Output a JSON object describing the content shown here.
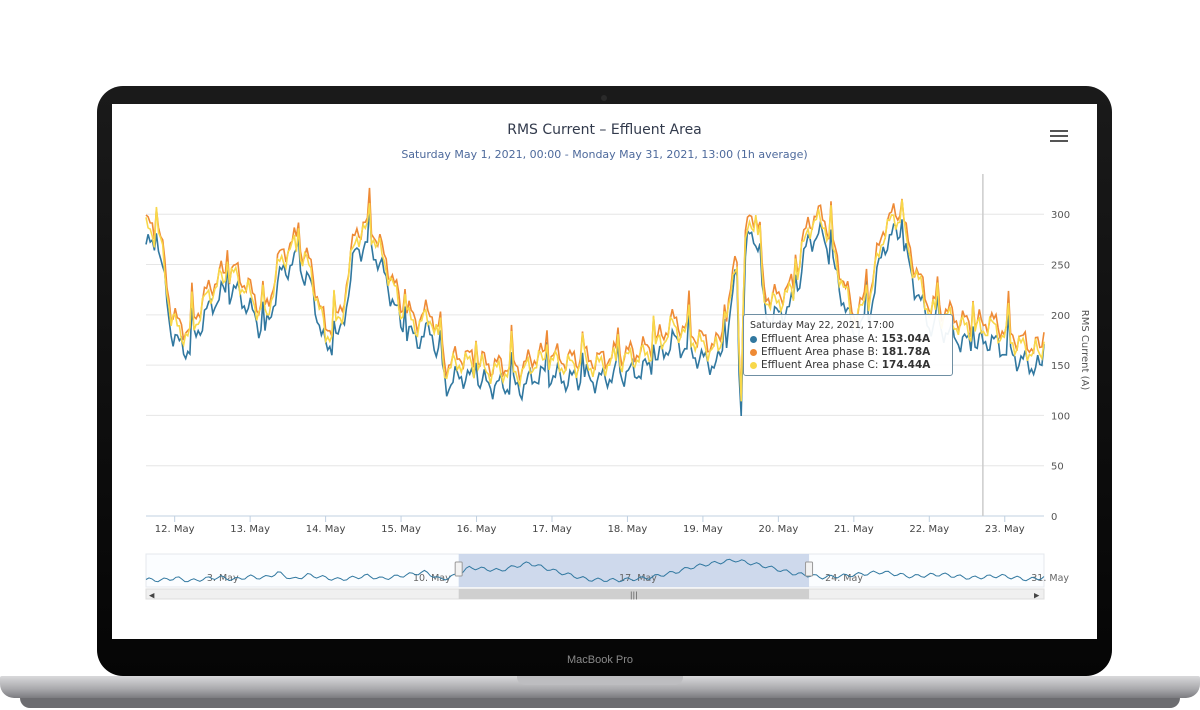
{
  "device": {
    "brand": "MacBook Pro"
  },
  "colors": {
    "phase_a": "#3178a0",
    "phase_b": "#ee8a35",
    "phase_c": "#f8d84a",
    "navigator_line": "#3178a0",
    "navigator_selection": "#c9d5ea"
  },
  "chart_data": {
    "type": "line",
    "title": "RMS Current – Effluent Area",
    "subtitle": "Saturday May 1, 2021, 00:00 - Monday May 31, 2021, 13:00 (1h average)",
    "ylabel": "RMS Current (A)",
    "ylim": [
      0,
      340
    ],
    "yticks": [
      "0",
      "50",
      "100",
      "150",
      "200",
      "250",
      "300"
    ],
    "x_domain_days": [
      11.62,
      23.52
    ],
    "xticks": [
      {
        "day": 12,
        "label": "12. May"
      },
      {
        "day": 13,
        "label": "13. May"
      },
      {
        "day": 14,
        "label": "14. May"
      },
      {
        "day": 15,
        "label": "15. May"
      },
      {
        "day": 16,
        "label": "16. May"
      },
      {
        "day": 17,
        "label": "17. May"
      },
      {
        "day": 18,
        "label": "18. May"
      },
      {
        "day": 19,
        "label": "19. May"
      },
      {
        "day": 20,
        "label": "20. May"
      },
      {
        "day": 21,
        "label": "21. May"
      },
      {
        "day": 22,
        "label": "22. May"
      },
      {
        "day": 23,
        "label": "23. May"
      }
    ],
    "grid": true,
    "crosshair_day": 22.71,
    "base_profile": {
      "day": [
        11.62,
        11.8,
        11.95,
        12.05,
        12.2,
        12.4,
        12.6,
        12.8,
        13.0,
        13.2,
        13.4,
        13.6,
        13.8,
        14.0,
        14.2,
        14.4,
        14.6,
        14.8,
        15.0,
        15.2,
        15.4,
        15.6,
        15.8,
        16.0,
        16.2,
        16.4,
        16.6,
        16.8,
        17.0,
        17.2,
        17.4,
        17.6,
        17.8,
        18.0,
        18.2,
        18.4,
        18.6,
        18.8,
        19.0,
        19.2,
        19.35,
        19.45,
        19.5,
        19.55,
        19.6,
        19.7,
        19.8,
        19.9,
        20.0,
        20.2,
        20.4,
        20.6,
        20.8,
        21.0,
        21.2,
        21.4,
        21.6,
        21.8,
        22.0,
        22.2,
        22.4,
        22.6,
        22.8,
        23.0,
        23.2,
        23.52
      ],
      "value": [
        280,
        275,
        195,
        180,
        175,
        210,
        230,
        235,
        215,
        190,
        250,
        265,
        240,
        175,
        190,
        275,
        280,
        245,
        200,
        185,
        195,
        140,
        150,
        145,
        140,
        140,
        138,
        150,
        150,
        145,
        148,
        145,
        150,
        152,
        155,
        165,
        185,
        175,
        165,
        160,
        200,
        260,
        90,
        250,
        290,
        290,
        220,
        205,
        210,
        220,
        285,
        290,
        240,
        190,
        210,
        280,
        295,
        240,
        200,
        195,
        185,
        180,
        185,
        175,
        165,
        155
      ]
    },
    "series": [
      {
        "name": "Effluent Area phase A",
        "color_key": "phase_a",
        "offset": -10
      },
      {
        "name": "Effluent Area phase B",
        "color_key": "phase_b",
        "offset": 10
      },
      {
        "name": "Effluent Area phase C",
        "color_key": "phase_c",
        "offset": 4
      }
    ],
    "tooltip": {
      "header": "Saturday May 22, 2021, 17:00",
      "rows": [
        {
          "name": "Effluent Area phase A:",
          "value": "153.04A",
          "color_key": "phase_a"
        },
        {
          "name": "Effluent Area phase B:",
          "value": "181.78A",
          "color_key": "phase_b"
        },
        {
          "name": "Effluent Area phase C:",
          "value": "174.44A",
          "color_key": "phase_c"
        }
      ]
    },
    "navigator": {
      "x_domain_days": [
        1,
        31.5
      ],
      "selection_days": [
        11.62,
        23.52
      ],
      "labels": [
        {
          "day": 3,
          "label": "3. May"
        },
        {
          "day": 10,
          "label": "10. May"
        },
        {
          "day": 17,
          "label": "17. May"
        },
        {
          "day": 24,
          "label": "24. May"
        },
        {
          "day": 31,
          "label": "31. May"
        }
      ],
      "profile": {
        "day": [
          1,
          1.5,
          2,
          2.5,
          3,
          3.5,
          4,
          4.5,
          5,
          5.5,
          6,
          6.5,
          7,
          7.5,
          8,
          8.5,
          9,
          9.5,
          10,
          10.5,
          11,
          11.5,
          12,
          13,
          14,
          15,
          16,
          17,
          18,
          19,
          19.5,
          20,
          21,
          22,
          23,
          24,
          25,
          26,
          27,
          28,
          29,
          30,
          31,
          31.5
        ],
        "value": [
          150,
          145,
          160,
          140,
          155,
          165,
          150,
          170,
          160,
          195,
          150,
          180,
          165,
          150,
          160,
          175,
          155,
          170,
          185,
          200,
          150,
          175,
          230,
          210,
          260,
          200,
          150,
          145,
          160,
          200,
          230,
          250,
          280,
          240,
          190,
          165,
          180,
          200,
          170,
          185,
          160,
          175,
          150,
          165
        ]
      }
    }
  }
}
